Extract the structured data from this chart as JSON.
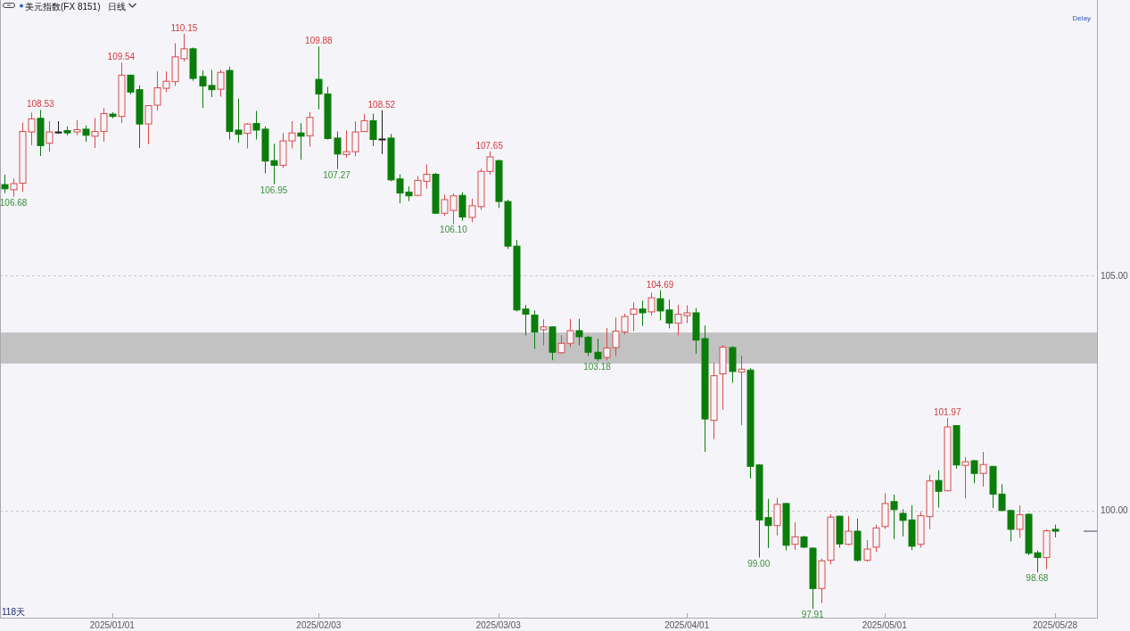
{
  "chart_data": {
    "type": "candlestick",
    "title": "美元指数(FX 8151)",
    "subtitle": "日线",
    "categories": [
      null,
      null,
      null,
      null,
      null,
      null,
      null,
      null,
      null,
      null,
      null,
      null,
      "2025/01/01",
      null,
      null,
      null,
      null,
      null,
      null,
      null,
      null,
      null,
      null,
      null,
      null,
      null,
      null,
      null,
      null,
      null,
      null,
      null,
      null,
      null,
      null,
      "2025/02/03",
      null,
      null,
      null,
      null,
      null,
      null,
      null,
      null,
      null,
      null,
      null,
      null,
      null,
      null,
      null,
      null,
      null,
      null,
      null,
      "2025/03/03",
      null,
      null,
      null,
      null,
      null,
      null,
      null,
      null,
      null,
      null,
      null,
      null,
      null,
      null,
      null,
      null,
      null,
      null,
      null,
      null,
      "2025/04/01",
      null,
      null,
      null,
      null,
      null,
      null,
      null,
      null,
      null,
      null,
      null,
      null,
      null,
      null,
      null,
      null,
      null,
      null,
      null,
      null,
      null,
      "2025/05/01",
      null,
      null,
      null,
      null,
      null,
      null,
      null,
      null,
      null,
      null,
      null,
      null,
      null,
      null,
      null,
      null,
      null,
      null,
      "2025/05/28"
    ],
    "ohlc": [
      [
        106.94,
        107.15,
        106.76,
        106.85
      ],
      [
        106.83,
        107.07,
        106.68,
        106.96
      ],
      [
        106.97,
        108.26,
        106.79,
        108.07
      ],
      [
        108.06,
        108.47,
        107.78,
        108.34
      ],
      [
        108.35,
        108.53,
        107.55,
        107.77
      ],
      [
        107.82,
        108.29,
        107.64,
        108.06
      ],
      [
        108.06,
        108.29,
        108.02,
        108.06
      ],
      [
        108.09,
        108.18,
        107.99,
        108.04
      ],
      [
        108.06,
        108.31,
        107.99,
        108.11
      ],
      [
        108.12,
        108.2,
        107.85,
        107.99
      ],
      [
        107.97,
        108.36,
        107.72,
        108.07
      ],
      [
        108.07,
        108.57,
        107.85,
        108.45
      ],
      [
        108.44,
        108.48,
        108.35,
        108.39
      ],
      [
        108.39,
        109.54,
        108.25,
        109.27
      ],
      [
        109.27,
        109.28,
        108.86,
        108.91
      ],
      [
        108.96,
        109.05,
        107.72,
        108.23
      ],
      [
        108.23,
        108.63,
        107.8,
        108.62
      ],
      [
        108.63,
        109.35,
        108.52,
        109.0
      ],
      [
        108.99,
        109.35,
        108.91,
        109.14
      ],
      [
        109.13,
        109.95,
        109.04,
        109.66
      ],
      [
        109.62,
        110.15,
        109.56,
        109.83
      ],
      [
        109.83,
        109.86,
        109.15,
        109.2
      ],
      [
        109.24,
        109.37,
        108.57,
        109.04
      ],
      [
        109.05,
        109.38,
        108.8,
        108.96
      ],
      [
        108.97,
        109.38,
        108.81,
        109.33
      ],
      [
        109.37,
        109.45,
        107.9,
        108.07
      ],
      [
        108.1,
        108.77,
        107.83,
        108.01
      ],
      [
        108.03,
        108.25,
        107.71,
        108.23
      ],
      [
        108.24,
        108.51,
        107.9,
        108.1
      ],
      [
        108.12,
        108.18,
        107.18,
        107.44
      ],
      [
        107.45,
        107.81,
        106.95,
        107.35
      ],
      [
        107.35,
        108.04,
        107.29,
        107.87
      ],
      [
        107.87,
        108.29,
        107.71,
        108.04
      ],
      [
        108.04,
        108.25,
        107.47,
        107.97
      ],
      [
        107.98,
        108.48,
        107.75,
        108.37
      ],
      [
        109.18,
        109.88,
        108.54,
        108.87
      ],
      [
        108.87,
        109.02,
        107.9,
        107.92
      ],
      [
        107.93,
        108.07,
        107.27,
        107.59
      ],
      [
        107.58,
        108.09,
        107.51,
        107.64
      ],
      [
        107.64,
        108.29,
        107.54,
        108.06
      ],
      [
        108.07,
        108.44,
        108.06,
        108.3
      ],
      [
        108.3,
        108.45,
        107.76,
        107.9
      ],
      [
        107.91,
        108.52,
        107.59,
        107.91
      ],
      [
        107.93,
        108.02,
        107.01,
        107.04
      ],
      [
        107.06,
        107.16,
        106.54,
        106.76
      ],
      [
        106.78,
        106.9,
        106.59,
        106.7
      ],
      [
        106.71,
        107.12,
        106.69,
        107.03
      ],
      [
        107.01,
        107.37,
        106.85,
        107.16
      ],
      [
        107.16,
        107.19,
        106.32,
        106.33
      ],
      [
        106.33,
        106.73,
        106.27,
        106.62
      ],
      [
        106.39,
        106.75,
        106.1,
        106.7
      ],
      [
        106.71,
        106.78,
        106.17,
        106.25
      ],
      [
        106.24,
        106.64,
        106.14,
        106.49
      ],
      [
        106.47,
        107.28,
        106.4,
        107.22
      ],
      [
        107.22,
        107.65,
        107.15,
        107.53
      ],
      [
        107.45,
        107.47,
        106.44,
        106.58
      ],
      [
        106.58,
        106.62,
        105.57,
        105.63
      ],
      [
        105.63,
        105.76,
        104.24,
        104.27
      ],
      [
        104.29,
        104.38,
        103.73,
        104.18
      ],
      [
        104.16,
        104.26,
        103.44,
        103.8
      ],
      [
        103.85,
        104.07,
        103.52,
        103.91
      ],
      [
        103.91,
        103.92,
        103.2,
        103.37
      ],
      [
        103.36,
        103.73,
        103.33,
        103.56
      ],
      [
        103.56,
        104.08,
        103.48,
        103.83
      ],
      [
        103.83,
        104.08,
        103.52,
        103.7
      ],
      [
        103.69,
        103.72,
        103.29,
        103.37
      ],
      [
        103.37,
        103.66,
        103.18,
        103.23
      ],
      [
        103.26,
        103.89,
        103.2,
        103.46
      ],
      [
        103.47,
        104.11,
        103.29,
        103.82
      ],
      [
        103.8,
        104.19,
        103.75,
        104.13
      ],
      [
        104.18,
        104.43,
        103.82,
        104.29
      ],
      [
        104.29,
        104.47,
        103.93,
        104.21
      ],
      [
        104.23,
        104.64,
        104.15,
        104.53
      ],
      [
        104.51,
        104.69,
        104.05,
        104.25
      ],
      [
        104.27,
        104.49,
        103.88,
        103.99
      ],
      [
        103.99,
        104.38,
        103.73,
        104.18
      ],
      [
        104.15,
        104.37,
        103.99,
        104.21
      ],
      [
        104.21,
        104.31,
        103.34,
        103.63
      ],
      [
        103.66,
        103.94,
        101.25,
        101.95
      ],
      [
        101.92,
        103.15,
        101.52,
        102.87
      ],
      [
        102.91,
        103.52,
        102.15,
        103.48
      ],
      [
        103.47,
        103.5,
        102.72,
        102.96
      ],
      [
        102.95,
        103.3,
        101.82,
        103.01
      ],
      [
        102.99,
        103.03,
        100.68,
        100.94
      ],
      [
        100.97,
        100.99,
        99.0,
        99.8
      ],
      [
        99.85,
        100.25,
        99.2,
        99.68
      ],
      [
        99.68,
        100.27,
        99.47,
        100.13
      ],
      [
        100.15,
        100.16,
        99.15,
        99.26
      ],
      [
        99.28,
        99.75,
        99.16,
        99.44
      ],
      [
        99.44,
        99.46,
        99.2,
        99.22
      ],
      [
        99.2,
        99.21,
        97.91,
        98.34
      ],
      [
        98.34,
        98.98,
        98.03,
        98.93
      ],
      [
        98.94,
        99.92,
        98.85,
        99.86
      ],
      [
        99.88,
        99.89,
        99.21,
        99.29
      ],
      [
        99.28,
        99.88,
        99.26,
        99.56
      ],
      [
        99.56,
        99.83,
        98.91,
        98.94
      ],
      [
        98.94,
        99.37,
        98.91,
        99.18
      ],
      [
        99.22,
        99.7,
        99.12,
        99.63
      ],
      [
        99.66,
        100.37,
        99.61,
        100.15
      ],
      [
        100.19,
        100.34,
        99.39,
        100.02
      ],
      [
        99.94,
        100.03,
        99.45,
        99.79
      ],
      [
        99.8,
        100.11,
        99.16,
        99.24
      ],
      [
        99.28,
        99.97,
        99.21,
        99.89
      ],
      [
        99.87,
        100.76,
        99.6,
        100.63
      ],
      [
        100.64,
        100.86,
        100.06,
        100.41
      ],
      [
        100.42,
        101.97,
        100.42,
        101.78
      ],
      [
        101.81,
        101.81,
        100.89,
        100.97
      ],
      [
        100.96,
        101.14,
        100.26,
        101.04
      ],
      [
        101.06,
        101.08,
        100.58,
        100.79
      ],
      [
        100.79,
        101.25,
        100.51,
        100.98
      ],
      [
        100.94,
        100.95,
        100.05,
        100.35
      ],
      [
        100.35,
        100.56,
        100.0,
        100.0
      ],
      [
        100.0,
        100.02,
        99.34,
        99.6
      ],
      [
        99.6,
        100.11,
        99.42,
        99.91
      ],
      [
        99.92,
        99.94,
        99.05,
        99.09
      ],
      [
        99.1,
        99.15,
        98.68,
        99.0
      ],
      [
        99.0,
        99.6,
        98.75,
        99.57
      ],
      [
        99.6,
        99.7,
        99.43,
        99.56
      ]
    ],
    "colors": [
      "#0b7d0b",
      "#d94a4a",
      "#d94a4a",
      "#d94a4a",
      "#0b7d0b",
      "#d94a4a",
      "#1e1e1e",
      "#0b7d0b",
      "#d94a4a",
      "#0b7d0b",
      "#d94a4a",
      "#d94a4a",
      "#0b7d0b",
      "#d94a4a",
      "#0b7d0b",
      "#0b7d0b",
      "#d94a4a",
      "#d94a4a",
      "#d94a4a",
      "#d94a4a",
      "#d94a4a",
      "#0b7d0b",
      "#0b7d0b",
      "#0b7d0b",
      "#d94a4a",
      "#0b7d0b",
      "#0b7d0b",
      "#d94a4a",
      "#0b7d0b",
      "#0b7d0b",
      "#0b7d0b",
      "#d94a4a",
      "#d94a4a",
      "#0b7d0b",
      "#d94a4a",
      "#0b7d0b",
      "#0b7d0b",
      "#0b7d0b",
      "#d94a4a",
      "#d94a4a",
      "#d94a4a",
      "#0b7d0b",
      "#1e1e1e",
      "#0b7d0b",
      "#0b7d0b",
      "#0b7d0b",
      "#d94a4a",
      "#d94a4a",
      "#0b7d0b",
      "#d94a4a",
      "#d94a4a",
      "#0b7d0b",
      "#d94a4a",
      "#d94a4a",
      "#d94a4a",
      "#0b7d0b",
      "#0b7d0b",
      "#0b7d0b",
      "#0b7d0b",
      "#0b7d0b",
      "#d94a4a",
      "#0b7d0b",
      "#d94a4a",
      "#d94a4a",
      "#0b7d0b",
      "#0b7d0b",
      "#0b7d0b",
      "#d94a4a",
      "#d94a4a",
      "#d94a4a",
      "#d94a4a",
      "#0b7d0b",
      "#d94a4a",
      "#0b7d0b",
      "#0b7d0b",
      "#d94a4a",
      "#d94a4a",
      "#0b7d0b",
      "#0b7d0b",
      "#d94a4a",
      "#d94a4a",
      "#0b7d0b",
      "#d94a4a",
      "#0b7d0b",
      "#0b7d0b",
      "#0b7d0b",
      "#d94a4a",
      "#0b7d0b",
      "#d94a4a",
      "#0b7d0b",
      "#0b7d0b",
      "#d94a4a",
      "#d94a4a",
      "#0b7d0b",
      "#d94a4a",
      "#0b7d0b",
      "#d94a4a",
      "#d94a4a",
      "#d94a4a",
      "#0b7d0b",
      "#0b7d0b",
      "#0b7d0b",
      "#d94a4a",
      "#d94a4a",
      "#0b7d0b",
      "#d94a4a",
      "#0b7d0b",
      "#d94a4a",
      "#0b7d0b",
      "#d94a4a",
      "#0b7d0b",
      "#0b7d0b",
      "#0b7d0b",
      "#d94a4a",
      "#0b7d0b",
      "#0b7d0b",
      "#d94a4a",
      "#0b7d0b"
    ],
    "ylim": [
      97.72,
      110.87
    ],
    "yticks": [
      {
        "value": 105,
        "label": "105.00"
      },
      {
        "value": 100,
        "label": "100.00"
      }
    ],
    "grid": "y",
    "bands": [
      {
        "axis": "y",
        "from": 103.13,
        "to": 103.79,
        "color": "#c2c2c2"
      }
    ],
    "annotations": [
      {
        "text": "106.68",
        "y": 106.68
      },
      {
        "text": "108.53",
        "y": 108.53
      },
      {
        "text": "109.54",
        "y": 109.54
      },
      {
        "text": "110.15",
        "y": 110.15
      },
      {
        "text": "106.95",
        "y": 106.95
      },
      {
        "text": "109.88",
        "y": 109.88
      },
      {
        "text": "107.27",
        "y": 107.27
      },
      {
        "text": "108.52",
        "y": 108.52
      },
      {
        "text": "106.10",
        "y": 106.1
      },
      {
        "text": "107.65",
        "y": 107.65
      },
      {
        "text": "103.18",
        "y": 103.18
      },
      {
        "text": "104.69",
        "y": 104.69
      },
      {
        "text": "99.00",
        "y": 99.0
      },
      {
        "text": "97.91",
        "y": 97.91
      },
      {
        "text": "101.97",
        "y": 101.97
      },
      {
        "text": "98.68",
        "y": 98.68
      },
      "Delay",
      "118天"
    ]
  }
}
